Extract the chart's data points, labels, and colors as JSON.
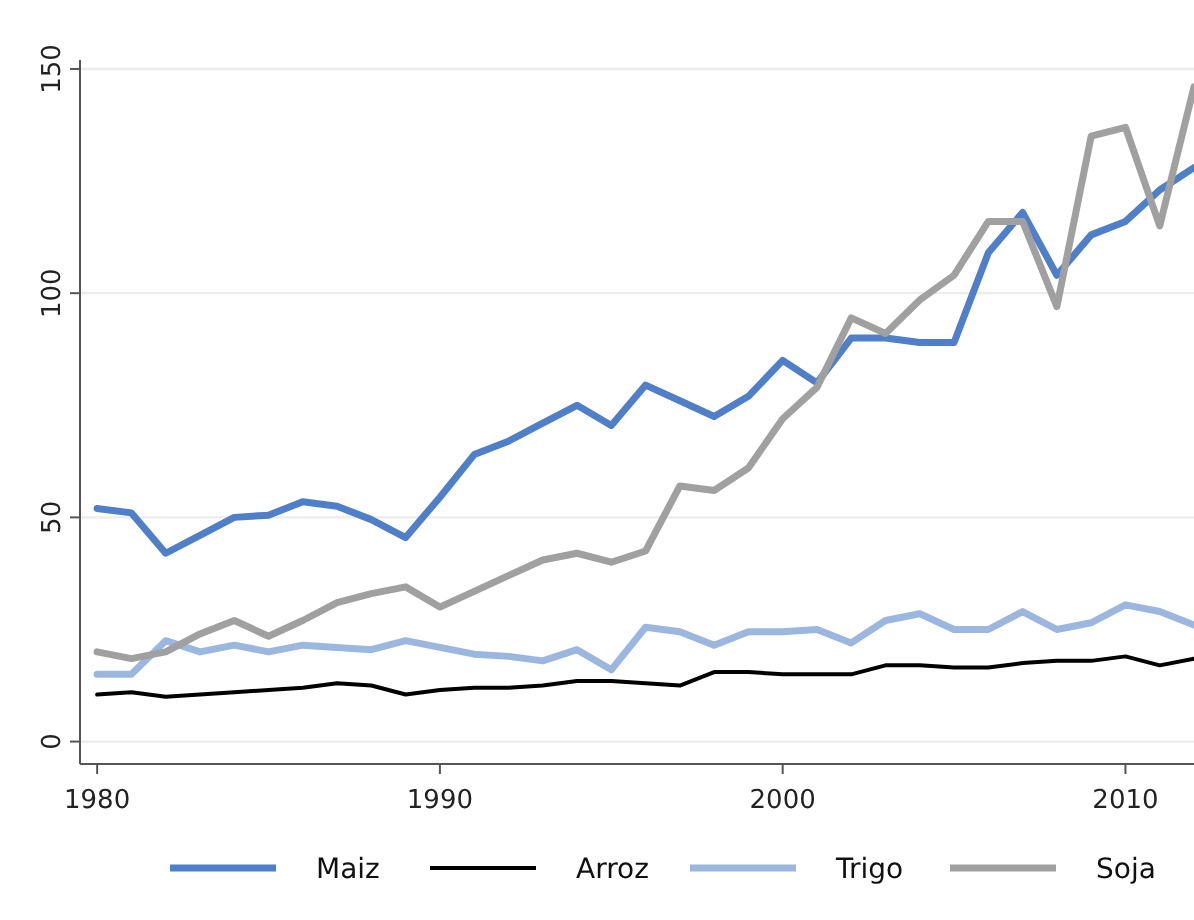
{
  "chart_data": {
    "type": "line",
    "x": [
      1980,
      1981,
      1982,
      1983,
      1984,
      1985,
      1986,
      1987,
      1988,
      1989,
      1990,
      1991,
      1992,
      1993,
      1994,
      1995,
      1996,
      1997,
      1998,
      1999,
      2000,
      2001,
      2002,
      2003,
      2004,
      2005,
      2006,
      2007,
      2008,
      2009,
      2010,
      2011,
      2012
    ],
    "xlim": [
      1979.5,
      2012
    ],
    "xticks": [
      1980,
      1990,
      2000,
      2010
    ],
    "ylim": [
      -5,
      152
    ],
    "yticks": [
      0,
      50,
      100,
      150
    ],
    "grid": "y",
    "legend": "bottom",
    "line_style": "solid",
    "series": [
      {
        "name": "Maiz",
        "color": "#4f7fc8",
        "values": [
          52,
          51,
          42,
          46,
          50,
          50.5,
          53.5,
          52.5,
          49.5,
          45.5,
          54.5,
          64,
          67,
          71,
          75,
          70.5,
          79.5,
          76,
          72.5,
          77,
          85,
          80,
          90,
          90,
          89,
          89,
          109,
          118,
          104,
          113,
          116,
          123,
          128
        ]
      },
      {
        "name": "Arroz",
        "color": "#000000",
        "values": [
          10.5,
          11,
          10,
          10.5,
          11,
          11.5,
          12,
          13,
          12.5,
          10.5,
          11.5,
          12,
          12,
          12.5,
          13.5,
          13.5,
          13,
          12.5,
          15.5,
          15.5,
          15,
          15,
          15,
          17,
          17,
          16.5,
          16.5,
          17.5,
          18,
          18,
          19,
          17,
          18.5
        ]
      },
      {
        "name": "Trigo",
        "color": "#9bb7e0",
        "values": [
          15,
          15,
          22.5,
          20,
          21.5,
          20,
          21.5,
          21,
          20.5,
          22.5,
          21,
          19.5,
          19,
          18,
          20.5,
          16,
          25.5,
          24.5,
          21.5,
          24.5,
          24.5,
          25,
          22,
          27,
          28.5,
          25,
          25,
          29,
          25,
          26.5,
          30.5,
          29,
          26
        ]
      },
      {
        "name": "Soja",
        "color": "#a0a0a0",
        "values": [
          20,
          18.5,
          20,
          24,
          27,
          23.5,
          27,
          31,
          33,
          34.5,
          30,
          33.5,
          37,
          40.5,
          42,
          40,
          42.5,
          57,
          56,
          61,
          72,
          79,
          94.5,
          91,
          98.5,
          104,
          116,
          116,
          97,
          135,
          137,
          115,
          146
        ]
      }
    ]
  }
}
